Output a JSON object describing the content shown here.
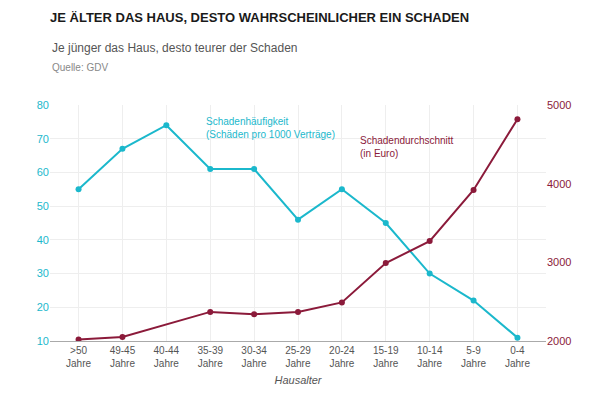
{
  "chart_data": {
    "type": "line",
    "title": "JE ÄLTER DAS HAUS, DESTO WAHRSCHEINLICHER EIN SCHADEN",
    "subtitle": "Je jünger das Haus, desto teurer der Schaden",
    "annotations": [
      "Quelle: GDV"
    ],
    "xlabel": "Hausalter",
    "categories": [
      ">50\nJahre",
      "49-45\nJahre",
      "40-44\nJahre",
      "35-39\nJahre",
      "30-34\nJahre",
      "25-29\nJahre",
      "20-24\nJahre",
      "15-19\nJahre",
      "10-14\nJahre",
      "5-9\nJahre",
      "0-4\nJahre"
    ],
    "series": [
      {
        "name": "Schadenhäufigkeit\n(Schäden pro 1000 Verträge)",
        "color": "#1BB8CC",
        "values": [
          55,
          67,
          74,
          61,
          61,
          46,
          55,
          45,
          30,
          22,
          11
        ]
      },
      {
        "name": "Schadendurchschnitt\n(in Euro)",
        "color": "#8B1A3A",
        "axis": "y2",
        "values": [
          2020,
          2050,
          null,
          2370,
          2340,
          2370,
          2490,
          2990,
          3270,
          3920,
          4820
        ]
      }
    ],
    "ylim": [
      10,
      80
    ],
    "yticks": [
      10,
      20,
      30,
      40,
      50,
      60,
      70,
      80
    ],
    "y2lim": [
      2000,
      5000
    ],
    "y2ticks": [
      2000,
      3000,
      4000,
      5000
    ],
    "grid": true,
    "marker": "circle"
  }
}
